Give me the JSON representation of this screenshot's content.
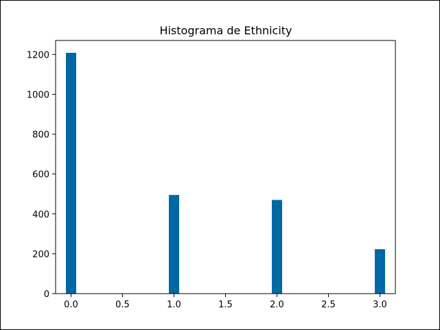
{
  "chart_data": {
    "type": "bar",
    "title": "Histograma de Ethnicity",
    "xlabel": "",
    "ylabel": "",
    "xlim": [
      -0.15,
      3.15
    ],
    "ylim": [
      0,
      1270
    ],
    "x_ticks": [
      0.0,
      0.5,
      1.0,
      1.5,
      2.0,
      2.5,
      3.0
    ],
    "x_tick_labels": [
      "0.0",
      "0.5",
      "1.0",
      "1.5",
      "2.0",
      "2.5",
      "3.0"
    ],
    "y_ticks": [
      0,
      200,
      400,
      600,
      800,
      1000,
      1200
    ],
    "y_tick_labels": [
      "0",
      "200",
      "400",
      "600",
      "800",
      "1000",
      "1200"
    ],
    "bin_width": 0.1,
    "bars": [
      {
        "x": 0.0,
        "value": 1208
      },
      {
        "x": 1.0,
        "value": 495
      },
      {
        "x": 2.0,
        "value": 470
      },
      {
        "x": 3.0,
        "value": 223
      }
    ],
    "bar_color": "#0068a5",
    "grid": false,
    "legend": "none"
  }
}
